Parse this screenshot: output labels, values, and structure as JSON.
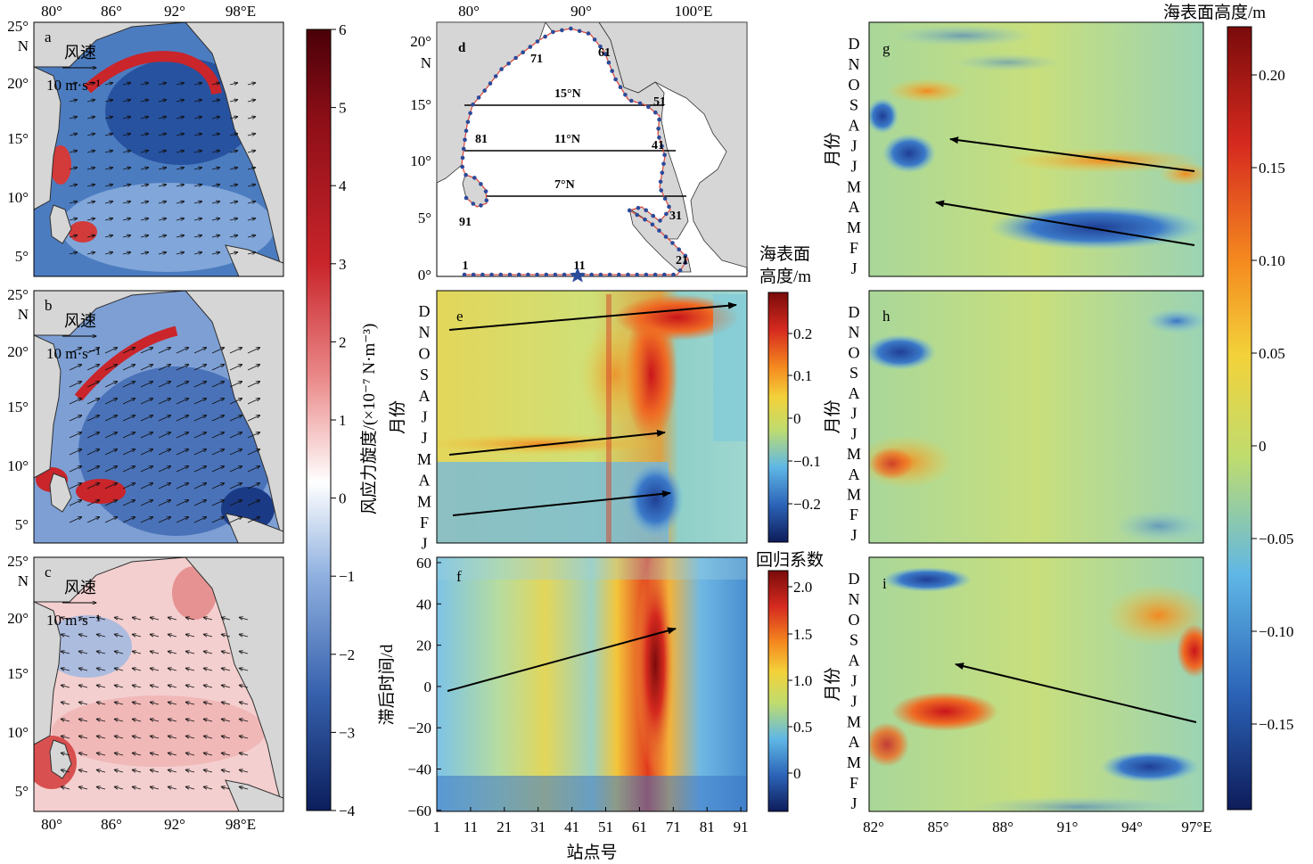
{
  "colors": {
    "ocean_blue": "#3f6fb6",
    "ocean_dark": "#234f9c",
    "positive_red": "#c9252b",
    "land": "#d6d6d6",
    "coast": "#2f2f2f",
    "station_dot": "#2b4a9a",
    "arrow": "#000000"
  },
  "map_panels": {
    "panels": [
      {
        "letter": "a",
        "wind_label": "风速",
        "wind_scale": "10 m·s⁻¹"
      },
      {
        "letter": "b",
        "wind_label": "风速",
        "wind_scale": "10 m·s⁻¹"
      },
      {
        "letter": "c",
        "wind_label": "风速",
        "wind_scale": "10 m·s⁻¹"
      }
    ],
    "x_ticks": [
      "80°",
      "86°",
      "92°",
      "98°E"
    ],
    "y_ticks": [
      "25°",
      "N",
      "20°",
      "15°",
      "10°",
      "5°"
    ],
    "colorbar": {
      "label": "风应力旋度/(×10⁻⁷ N·m⁻³)",
      "ticks": [
        "6",
        "5",
        "4",
        "3",
        "2",
        "1",
        "0",
        "−1",
        "−2",
        "−3",
        "−4"
      ]
    }
  },
  "station_map": {
    "letter": "d",
    "x_ticks": [
      "80°",
      "90°",
      "100°E"
    ],
    "y_ticks": [
      "20°",
      "N",
      "15°",
      "10°",
      "5°",
      "0°"
    ],
    "section_labels": [
      "15°N",
      "11°N",
      "7°N"
    ],
    "station_labels": [
      "1",
      "11",
      "21",
      "31",
      "41",
      "51",
      "61",
      "71",
      "81",
      "91"
    ]
  },
  "panel_e": {
    "letter": "e",
    "y_label": "月份",
    "months": [
      "D",
      "N",
      "O",
      "S",
      "A",
      "J",
      "J",
      "M",
      "A",
      "M",
      "F",
      "J"
    ],
    "colorbar": {
      "label_line1": "海表面",
      "label_line2": "高度/m",
      "ticks": [
        "0.2",
        "0.1",
        "0",
        "−0.1",
        "−0.2"
      ]
    }
  },
  "panel_f": {
    "letter": "f",
    "y_label": "滞后时间/d",
    "x_label": "站点号",
    "y_ticks": [
      "60",
      "40",
      "20",
      "0",
      "−20",
      "−40",
      "−60"
    ],
    "x_ticks": [
      "1",
      "11",
      "21",
      "31",
      "41",
      "51",
      "61",
      "71",
      "81",
      "91"
    ],
    "colorbar": {
      "label": "回归系数",
      "ticks": [
        "2.0",
        "1.5",
        "1.0",
        "0.5",
        "0"
      ]
    }
  },
  "panels_ghi": {
    "letters": [
      "g",
      "h",
      "i"
    ],
    "y_label": "月份",
    "months": [
      "D",
      "N",
      "O",
      "S",
      "A",
      "J",
      "J",
      "M",
      "A",
      "M",
      "F",
      "J"
    ],
    "x_ticks": [
      "82°",
      "85°",
      "88°",
      "91°",
      "94°",
      "97°E"
    ],
    "colorbar": {
      "label": "海表面高度/m",
      "ticks": [
        "0.20",
        "0.15",
        "0.10",
        "0.05",
        "0",
        "−0.05",
        "−0.10",
        "−0.15"
      ]
    }
  }
}
